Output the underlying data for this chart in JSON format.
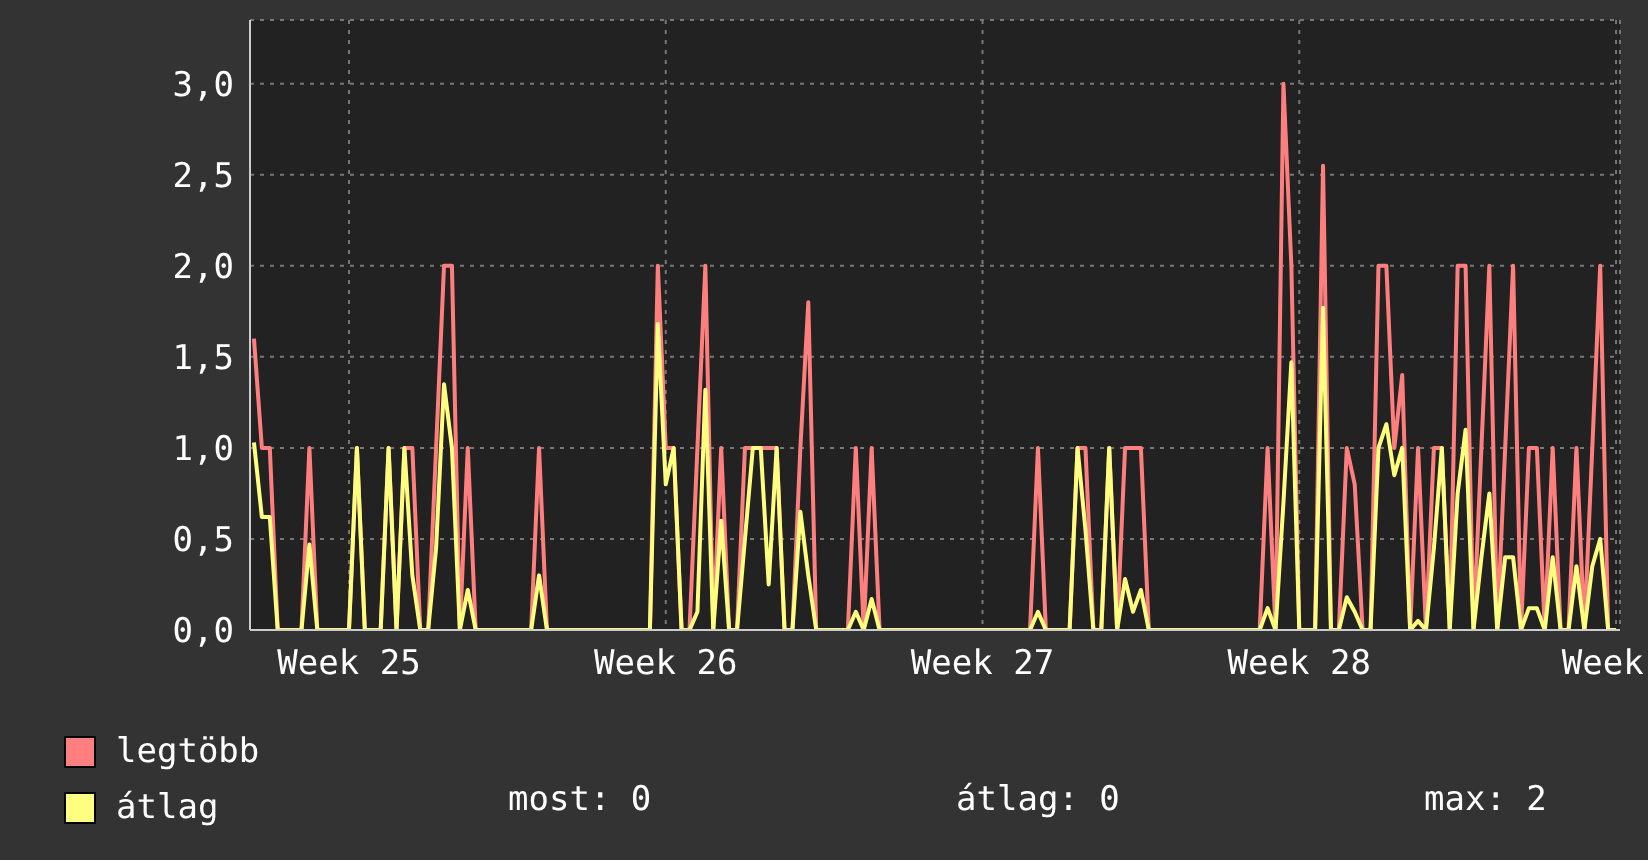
{
  "chart_data": {
    "type": "line",
    "categories": [
      null,
      null,
      null,
      null,
      null,
      null,
      null,
      null,
      null,
      null,
      null,
      null,
      "Week 25",
      null,
      null,
      null,
      null,
      null,
      null,
      null,
      null,
      null,
      null,
      null,
      null,
      null,
      null,
      null,
      null,
      null,
      null,
      null,
      null,
      null,
      null,
      null,
      null,
      null,
      null,
      null,
      null,
      null,
      null,
      null,
      null,
      null,
      null,
      null,
      null,
      null,
      null,
      null,
      "Week 26",
      null,
      null,
      null,
      null,
      null,
      null,
      null,
      null,
      null,
      null,
      null,
      null,
      null,
      null,
      null,
      null,
      null,
      null,
      null,
      null,
      null,
      null,
      null,
      null,
      null,
      null,
      null,
      null,
      null,
      null,
      null,
      null,
      null,
      null,
      null,
      null,
      null,
      null,
      null,
      "Week 27",
      null,
      null,
      null,
      null,
      null,
      null,
      null,
      null,
      null,
      null,
      null,
      null,
      null,
      null,
      null,
      null,
      null,
      null,
      null,
      null,
      null,
      null,
      null,
      null,
      null,
      null,
      null,
      null,
      null,
      null,
      null,
      null,
      null,
      null,
      null,
      null,
      null,
      null,
      null,
      "Week 28",
      null,
      null,
      null,
      null,
      null,
      null,
      null,
      null,
      null,
      null,
      null,
      null,
      null,
      null,
      null,
      null,
      null,
      null,
      null,
      null,
      null,
      null,
      null,
      null,
      null,
      null,
      null,
      null,
      null,
      null,
      null,
      null,
      null,
      null,
      null,
      null,
      null,
      null,
      null,
      "Week"
    ],
    "series": [
      {
        "name": "legtöbb",
        "color": "#ff7f7f",
        "values": [
          1.6,
          1,
          1,
          0,
          0,
          0,
          0,
          1,
          0,
          0,
          0,
          0,
          0,
          1,
          0,
          0,
          0,
          1,
          0,
          1,
          1,
          0,
          0,
          1,
          2,
          2,
          0,
          1,
          0,
          0,
          0,
          0,
          0,
          0,
          0,
          0,
          1,
          0,
          0,
          0,
          0,
          0,
          0,
          0,
          0,
          0,
          0,
          0,
          0,
          0,
          0,
          2,
          1,
          1,
          0,
          0,
          1,
          2,
          0,
          1,
          0,
          0,
          1,
          1,
          1,
          1,
          1,
          0,
          0,
          1,
          1.8,
          0,
          0,
          0,
          0,
          0,
          1,
          0,
          1,
          0,
          0,
          0,
          0,
          0,
          0,
          0,
          0,
          0,
          0,
          0,
          0,
          0,
          0,
          0,
          0,
          0,
          0,
          0,
          0,
          1,
          0,
          0,
          0,
          0,
          1,
          1,
          0,
          0,
          1,
          0,
          1,
          1,
          1,
          0,
          0,
          0,
          0,
          0,
          0,
          0,
          0,
          0,
          0,
          0,
          0,
          0,
          0,
          0,
          1,
          0,
          3,
          2,
          0,
          0,
          0,
          2.55,
          0,
          0,
          1,
          0.8,
          0,
          0,
          2,
          2,
          1,
          1.4,
          0,
          1,
          0,
          1,
          1,
          0,
          2,
          2,
          0,
          1,
          2,
          0,
          1,
          2,
          0,
          1,
          1,
          0,
          1,
          0,
          0,
          1,
          0,
          1,
          2,
          0,
          0
        ]
      },
      {
        "name": "átlag",
        "color": "#ffff7f",
        "values": [
          1.03,
          0.62,
          0.62,
          0,
          0,
          0,
          0,
          0.47,
          0,
          0,
          0,
          0,
          0,
          1,
          0,
          0,
          0,
          1,
          0,
          1,
          0.3,
          0,
          0,
          0.45,
          1.35,
          1,
          0,
          0.22,
          0,
          0,
          0,
          0,
          0,
          0,
          0,
          0,
          0.3,
          0,
          0,
          0,
          0,
          0,
          0,
          0,
          0,
          0,
          0,
          0,
          0,
          0,
          0,
          1.68,
          0.8,
          1,
          0,
          0,
          0.1,
          1.32,
          0,
          0.6,
          0,
          0,
          0.5,
          1,
          1,
          0.25,
          1,
          0,
          0,
          0.65,
          0.3,
          0,
          0,
          0,
          0,
          0,
          0.1,
          0,
          0.17,
          0,
          0,
          0,
          0,
          0,
          0,
          0,
          0,
          0,
          0,
          0,
          0,
          0,
          0,
          0,
          0,
          0,
          0,
          0,
          0,
          0.1,
          0,
          0,
          0,
          0,
          1,
          0.55,
          0,
          0,
          1,
          0,
          0.28,
          0.1,
          0.22,
          0,
          0,
          0,
          0,
          0,
          0,
          0,
          0,
          0,
          0,
          0,
          0,
          0,
          0,
          0,
          0.12,
          0,
          0.7,
          1.47,
          0,
          0,
          0,
          1.77,
          0,
          0,
          0.18,
          0.1,
          0,
          0,
          1,
          1.13,
          0.85,
          1,
          0,
          0.05,
          0,
          0.45,
          1,
          0,
          0.75,
          1.1,
          0,
          0.4,
          0.75,
          0,
          0.4,
          0.4,
          0,
          0.12,
          0.12,
          0,
          0.4,
          0,
          0,
          0.35,
          0,
          0.35,
          0.5,
          0,
          0
        ]
      }
    ],
    "ylim": [
      0,
      3.35
    ],
    "yticks": [
      {
        "value": 0,
        "label": "0,0"
      },
      {
        "value": 0.5,
        "label": "0,5"
      },
      {
        "value": 1,
        "label": "1,0"
      },
      {
        "value": 1.5,
        "label": "1,5"
      },
      {
        "value": 2,
        "label": "2,0"
      },
      {
        "value": 2.5,
        "label": "2,5"
      },
      {
        "value": 3,
        "label": "3,0"
      }
    ],
    "grid": true,
    "legend": "bottom left",
    "annotations": [
      "most: 0",
      "átlag: 0",
      "max: 2"
    ]
  }
}
